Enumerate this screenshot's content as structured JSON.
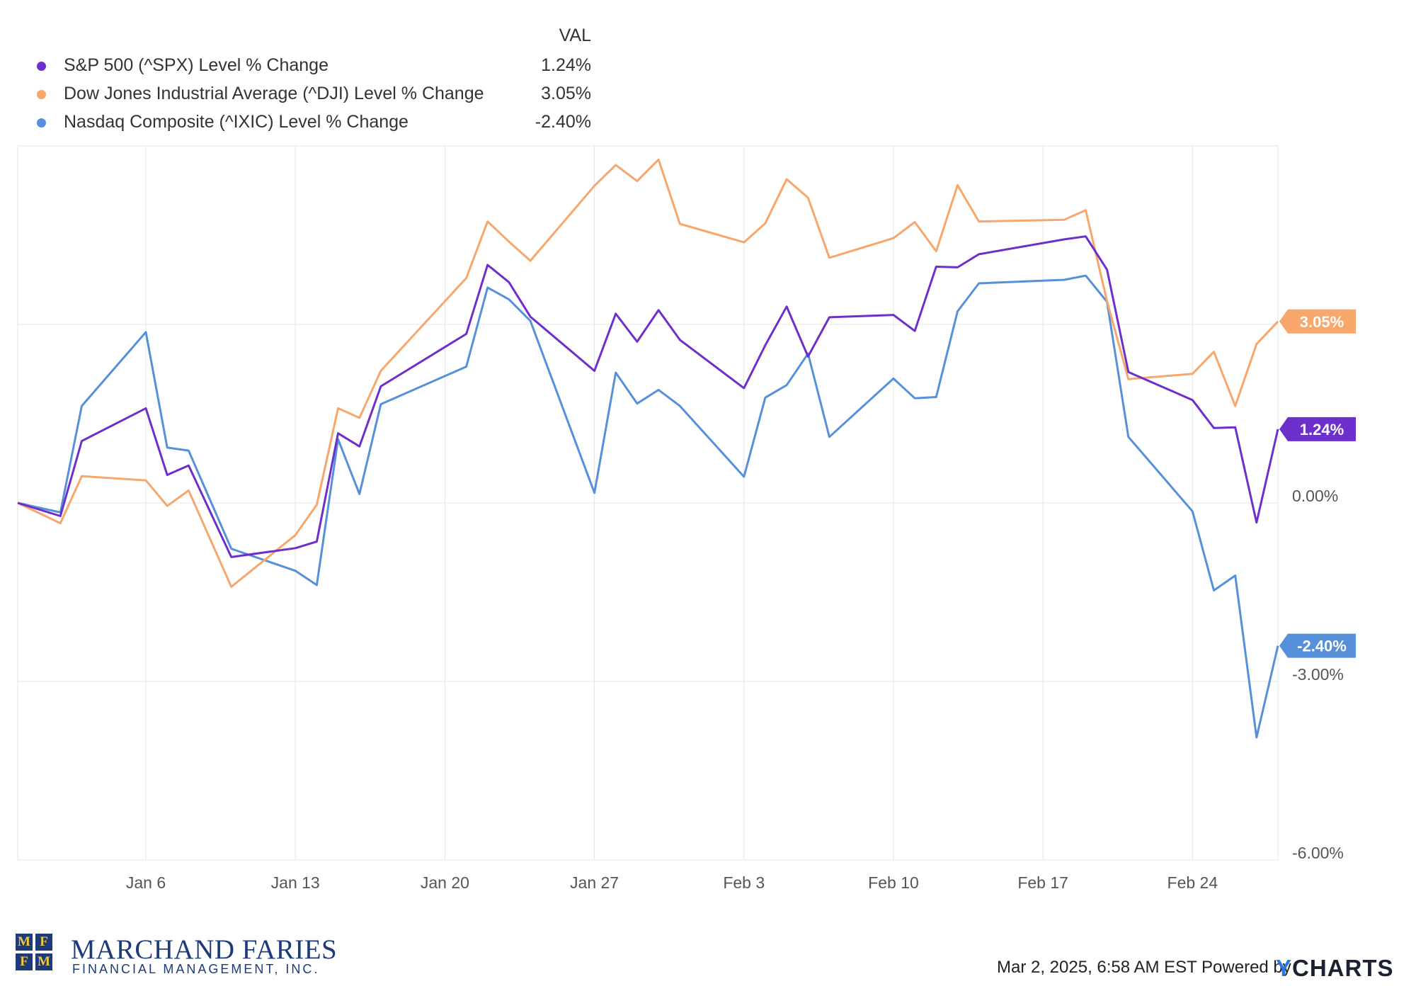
{
  "legend": {
    "column_header": "VAL",
    "items": [
      {
        "name": "S&P 500 (^SPX) Level % Change",
        "value": "1.24%",
        "color": "#6d2fcb"
      },
      {
        "name": "Dow Jones Industrial Average (^DJI) Level % Change",
        "value": "3.05%",
        "color": "#f7a66c"
      },
      {
        "name": "Nasdaq Composite (^IXIC) Level % Change",
        "value": "-2.40%",
        "color": "#5690da"
      }
    ]
  },
  "chart_data": {
    "type": "line",
    "ylim": [
      -6,
      6
    ],
    "y_ticks": [
      3,
      0,
      -3,
      -6
    ],
    "y_tick_labels": [
      "",
      "0.00%",
      "-3.00%",
      "-6.00%"
    ],
    "x_tick_labels": [
      "Jan 6",
      "Jan 13",
      "Jan 20",
      "Jan 27",
      "Feb 3",
      "Feb 10",
      "Feb 17",
      "Feb 24"
    ],
    "x_tick_dates": [
      "2025-01-06",
      "2025-01-13",
      "2025-01-20",
      "2025-01-27",
      "2025-02-03",
      "2025-02-10",
      "2025-02-17",
      "2025-02-24"
    ],
    "x_range": [
      "2024-12-31",
      "2025-02-28"
    ],
    "x": [
      "2024-12-31",
      "2025-01-02",
      "2025-01-03",
      "2025-01-06",
      "2025-01-07",
      "2025-01-08",
      "2025-01-10",
      "2025-01-13",
      "2025-01-14",
      "2025-01-15",
      "2025-01-16",
      "2025-01-17",
      "2025-01-21",
      "2025-01-22",
      "2025-01-23",
      "2025-01-24",
      "2025-01-27",
      "2025-01-28",
      "2025-01-29",
      "2025-01-30",
      "2025-01-31",
      "2025-02-03",
      "2025-02-04",
      "2025-02-05",
      "2025-02-06",
      "2025-02-07",
      "2025-02-10",
      "2025-02-11",
      "2025-02-12",
      "2025-02-13",
      "2025-02-14",
      "2025-02-18",
      "2025-02-19",
      "2025-02-20",
      "2025-02-21",
      "2025-02-24",
      "2025-02-25",
      "2025-02-26",
      "2025-02-27",
      "2025-02-28"
    ],
    "series": [
      {
        "name": "S&P 500 (^SPX) Level % Change",
        "color": "#6d2fcb",
        "end_label": "1.24%",
        "values": [
          0,
          -0.22,
          1.04,
          1.59,
          0.47,
          0.63,
          -0.91,
          -0.76,
          -0.65,
          1.17,
          0.95,
          1.96,
          2.84,
          4.0,
          3.71,
          3.13,
          2.22,
          3.18,
          2.71,
          3.24,
          2.74,
          1.93,
          2.65,
          3.3,
          2.46,
          3.12,
          3.16,
          2.89,
          3.97,
          3.96,
          4.18,
          4.43,
          4.48,
          3.92,
          2.2,
          1.73,
          1.26,
          1.27,
          -0.33,
          1.24
        ]
      },
      {
        "name": "Dow Jones Industrial Average (^DJI) Level % Change",
        "color": "#f7a66c",
        "end_label": "3.05%",
        "values": [
          0,
          -0.34,
          0.45,
          0.38,
          -0.05,
          0.21,
          -1.41,
          -0.54,
          -0.03,
          1.59,
          1.43,
          2.22,
          3.78,
          4.73,
          4.39,
          4.07,
          5.33,
          5.68,
          5.41,
          5.77,
          4.69,
          4.38,
          4.7,
          5.44,
          5.13,
          4.12,
          4.45,
          4.72,
          4.23,
          5.34,
          4.73,
          4.76,
          4.92,
          3.39,
          2.08,
          2.17,
          2.54,
          1.63,
          2.67,
          3.05
        ]
      },
      {
        "name": "Nasdaq Composite (^IXIC) Level % Change",
        "color": "#5690da",
        "end_label": "-2.40%",
        "values": [
          0,
          -0.16,
          1.63,
          2.87,
          0.93,
          0.88,
          -0.77,
          -1.14,
          -1.38,
          1.07,
          0.15,
          1.66,
          2.29,
          3.62,
          3.42,
          3.06,
          0.17,
          2.19,
          1.67,
          1.9,
          1.63,
          0.44,
          1.77,
          1.98,
          2.51,
          1.11,
          2.09,
          1.76,
          1.78,
          3.22,
          3.69,
          3.75,
          3.82,
          3.38,
          1.11,
          -0.14,
          -1.47,
          -1.22,
          -3.94,
          -2.4
        ]
      }
    ]
  },
  "branding": {
    "logo_letters": [
      "M",
      "F",
      "F",
      "M"
    ],
    "name": "MARCHAND FARIES",
    "subtitle": "FINANCIAL MANAGEMENT, INC."
  },
  "footer": {
    "timestamp": "Mar 2, 2025, 6:58 AM EST Powered by",
    "ycharts_mark": "Y",
    "ycharts_text": "CHARTS"
  }
}
